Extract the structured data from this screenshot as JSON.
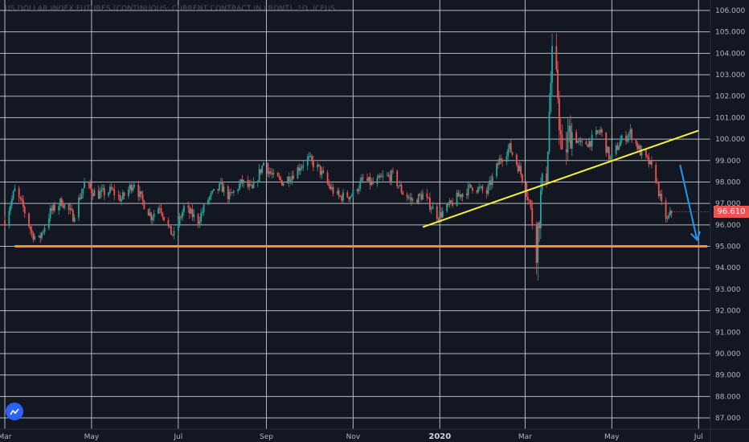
{
  "title": "US DOLLAR INDEX FUTURES (CONTINUOUS: CURRENT CONTRACT IN FRONT), 1D, ICEUS",
  "current_price_label": "96.610",
  "colors": {
    "background": "#131722",
    "grid": "#d1d4dc",
    "up": "#26a69a",
    "down": "#ef5350",
    "support_line": "#f7931a",
    "trend_line": "#f5f532",
    "arrow": "#2196f3",
    "price_badge": "#ef5350"
  },
  "chart_data": {
    "type": "candlestick",
    "title": "US DOLLAR INDEX FUTURES (CONTINUOUS: CURRENT CONTRACT IN FRONT), 1D, ICEUS",
    "y_range": [
      87.0,
      106.0
    ],
    "y_ticks": [
      "87.000",
      "88.000",
      "89.000",
      "90.000",
      "91.000",
      "92.000",
      "93.000",
      "94.000",
      "95.000",
      "96.000",
      "97.000",
      "98.000",
      "99.000",
      "100.000",
      "101.000",
      "102.000",
      "103.000",
      "104.000",
      "105.000",
      "106.000"
    ],
    "x_range": [
      "2019-03-01",
      "2020-07-15"
    ],
    "x_ticks": [
      {
        "label": "Mar",
        "date": "2019-03-01",
        "bold": false
      },
      {
        "label": "May",
        "date": "2019-05-01",
        "bold": false
      },
      {
        "label": "Jul",
        "date": "2019-07-01",
        "bold": false
      },
      {
        "label": "Sep",
        "date": "2019-09-01",
        "bold": false
      },
      {
        "label": "Nov",
        "date": "2019-11-01",
        "bold": false
      },
      {
        "label": "2020",
        "date": "2020-01-01",
        "bold": true
      },
      {
        "label": "Mar",
        "date": "2020-03-01",
        "bold": false
      },
      {
        "label": "May",
        "date": "2020-05-01",
        "bold": false
      },
      {
        "label": "Jul",
        "date": "2020-07-01",
        "bold": false
      }
    ],
    "price_path": [
      [
        "2019-03-01",
        96.2
      ],
      [
        "2019-03-08",
        97.6
      ],
      [
        "2019-03-14",
        96.8
      ],
      [
        "2019-03-20",
        95.6
      ],
      [
        "2019-03-25",
        95.3
      ],
      [
        "2019-04-02",
        96.6
      ],
      [
        "2019-04-10",
        97.1
      ],
      [
        "2019-04-18",
        96.4
      ],
      [
        "2019-04-26",
        97.9
      ],
      [
        "2019-05-05",
        97.4
      ],
      [
        "2019-05-15",
        97.6
      ],
      [
        "2019-05-22",
        97.2
      ],
      [
        "2019-05-31",
        98.0
      ],
      [
        "2019-06-05",
        97.2
      ],
      [
        "2019-06-12",
        96.4
      ],
      [
        "2019-06-18",
        96.9
      ],
      [
        "2019-06-25",
        95.7
      ],
      [
        "2019-06-28",
        95.5
      ],
      [
        "2019-07-05",
        96.8
      ],
      [
        "2019-07-15",
        96.2
      ],
      [
        "2019-07-22",
        97.2
      ],
      [
        "2019-07-31",
        97.8
      ],
      [
        "2019-08-06",
        97.3
      ],
      [
        "2019-08-15",
        98.0
      ],
      [
        "2019-08-22",
        97.6
      ],
      [
        "2019-08-30",
        98.9
      ],
      [
        "2019-09-06",
        98.2
      ],
      [
        "2019-09-13",
        98.0
      ],
      [
        "2019-09-20",
        98.4
      ],
      [
        "2019-09-30",
        99.1
      ],
      [
        "2019-10-08",
        98.6
      ],
      [
        "2019-10-15",
        97.8
      ],
      [
        "2019-10-22",
        97.3
      ],
      [
        "2019-10-31",
        97.4
      ],
      [
        "2019-11-08",
        98.1
      ],
      [
        "2019-11-15",
        97.9
      ],
      [
        "2019-11-22",
        98.2
      ],
      [
        "2019-11-29",
        98.3
      ],
      [
        "2019-12-06",
        97.5
      ],
      [
        "2019-12-13",
        97.1
      ],
      [
        "2019-12-20",
        97.4
      ],
      [
        "2019-12-31",
        96.4
      ],
      [
        "2020-01-08",
        96.9
      ],
      [
        "2020-01-15",
        97.4
      ],
      [
        "2020-01-24",
        97.8
      ],
      [
        "2020-02-03",
        97.5
      ],
      [
        "2020-02-12",
        99.0
      ],
      [
        "2020-02-19",
        99.6
      ],
      [
        "2020-02-26",
        98.6
      ],
      [
        "2020-03-04",
        97.1
      ],
      [
        "2020-03-09",
        95.1
      ],
      [
        "2020-03-12",
        97.3
      ],
      [
        "2020-03-16",
        98.6
      ],
      [
        "2020-03-19",
        102.6
      ],
      [
        "2020-03-20",
        103.6
      ],
      [
        "2020-03-24",
        102.1
      ],
      [
        "2020-03-27",
        98.9
      ],
      [
        "2020-04-02",
        100.4
      ],
      [
        "2020-04-09",
        99.7
      ],
      [
        "2020-04-16",
        99.9
      ],
      [
        "2020-04-23",
        100.4
      ],
      [
        "2020-04-30",
        99.0
      ],
      [
        "2020-05-07",
        99.9
      ],
      [
        "2020-05-14",
        100.3
      ],
      [
        "2020-05-21",
        99.4
      ],
      [
        "2020-05-27",
        98.9
      ],
      [
        "2020-06-01",
        98.2
      ],
      [
        "2020-06-05",
        96.9
      ],
      [
        "2020-06-09",
        96.2
      ],
      [
        "2020-06-12",
        96.6
      ]
    ],
    "drawings": [
      {
        "type": "horizontal",
        "name": "support-line",
        "y": 95.0,
        "x_from": "2019-03-08",
        "x_to": "2020-07-15"
      },
      {
        "type": "trend",
        "name": "trend-line",
        "from": [
          "2019-12-20",
          95.9
        ],
        "to": [
          "2020-07-01",
          100.4
        ]
      },
      {
        "type": "arrow",
        "name": "projection-arrow",
        "from": [
          "2020-06-18",
          98.8
        ],
        "to": [
          "2020-06-30",
          95.3
        ]
      }
    ],
    "current_price": 96.61,
    "grid": true,
    "legend": "none"
  }
}
